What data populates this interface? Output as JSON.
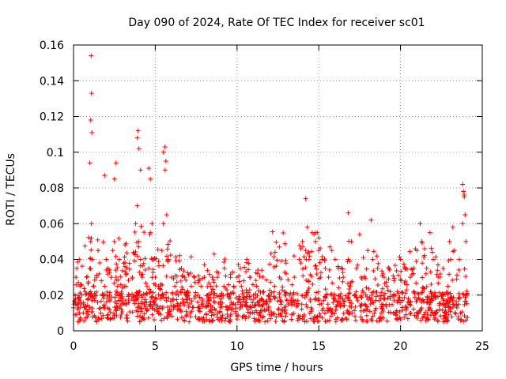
{
  "chart_data": {
    "type": "scatter",
    "title": "Day 090 of 2024, Rate Of TEC Index for receiver sc01",
    "xlabel": "GPS time / hours",
    "ylabel": "ROTI / TECUs",
    "xlim": [
      0,
      25
    ],
    "ylim": [
      0,
      0.16
    ],
    "xticks": [
      0,
      5,
      10,
      15,
      20,
      25
    ],
    "xtick_labels": [
      "0",
      "5",
      "10",
      "15",
      "20",
      "25"
    ],
    "yticks": [
      0,
      0.02,
      0.04,
      0.06,
      0.08,
      0.1,
      0.12,
      0.14,
      0.16
    ],
    "ytick_labels": [
      "0",
      "0.02",
      "0.04",
      "0.06",
      "0.08",
      "0.1",
      "0.12",
      "0.14",
      "0.16"
    ],
    "grid": true,
    "marker": "+",
    "color": "#ff0000",
    "series": [
      {
        "name": "ROTI",
        "x": [
          0.02,
          0.1,
          0.15,
          0.2,
          0.25,
          0.3,
          0.35,
          0.4,
          0.5,
          0.6,
          0.7,
          0.8,
          0.9,
          1.0,
          1.05,
          1.1,
          1.15,
          1.2,
          1.3,
          1.4,
          1.5,
          1.6,
          1.7,
          1.8,
          1.9,
          2.0,
          2.1,
          2.2,
          2.3,
          2.4,
          2.5,
          2.6,
          2.7,
          2.8,
          2.9,
          3.0,
          3.2,
          3.4,
          3.6,
          3.8,
          3.9,
          4.0,
          4.1,
          4.2,
          4.4,
          4.6,
          4.7,
          4.8,
          4.9,
          5.0,
          5.2,
          5.4,
          5.5,
          5.6,
          5.7,
          5.8,
          6.0,
          6.2,
          6.4,
          6.6,
          6.8,
          7.0,
          7.2,
          7.4,
          7.6,
          7.8,
          8.0,
          8.2,
          8.4,
          8.6,
          8.8,
          9.0,
          9.2,
          9.4,
          9.6,
          9.8,
          10.0,
          10.2,
          10.4,
          10.6,
          10.8,
          11.0,
          11.2,
          11.5,
          11.8,
          12.0,
          12.3,
          12.6,
          12.9,
          13.2,
          13.5,
          13.8,
          14.0,
          14.2,
          14.4,
          14.6,
          14.8,
          15.0,
          15.2,
          15.4,
          15.6,
          15.8,
          16.0,
          16.2,
          16.5,
          16.8,
          17.0,
          17.3,
          17.6,
          18.0,
          18.3,
          18.6,
          19.0,
          19.3,
          19.6,
          20.0,
          20.3,
          20.6,
          21.0,
          21.3,
          21.6,
          22.0,
          22.3,
          22.6,
          23.0,
          23.3,
          23.6,
          23.8,
          23.9,
          24.0,
          1.08,
          1.1,
          1.05,
          1.12,
          1.0,
          1.9,
          3.95,
          4.0,
          4.1,
          3.9,
          4.6,
          4.7,
          5.5,
          5.6,
          5.65,
          2.6,
          2.5,
          14.2,
          14.3,
          14.8,
          15.0,
          16.8,
          17.5,
          18.2,
          21.2,
          21.8,
          23.2,
          23.8,
          23.85,
          23.9,
          23.95
        ],
        "y": [
          0.015,
          0.02,
          0.03,
          0.035,
          0.012,
          0.018,
          0.04,
          0.025,
          0.02,
          0.015,
          0.022,
          0.03,
          0.018,
          0.035,
          0.05,
          0.06,
          0.04,
          0.025,
          0.02,
          0.03,
          0.045,
          0.038,
          0.028,
          0.02,
          0.025,
          0.04,
          0.035,
          0.02,
          0.03,
          0.045,
          0.05,
          0.03,
          0.025,
          0.04,
          0.02,
          0.015,
          0.025,
          0.02,
          0.03,
          0.06,
          0.07,
          0.05,
          0.04,
          0.03,
          0.02,
          0.035,
          0.055,
          0.06,
          0.04,
          0.03,
          0.025,
          0.045,
          0.06,
          0.09,
          0.065,
          0.04,
          0.03,
          0.025,
          0.02,
          0.035,
          0.03,
          0.02,
          0.025,
          0.03,
          0.02,
          0.025,
          0.03,
          0.02,
          0.025,
          0.043,
          0.03,
          0.02,
          0.025,
          0.02,
          0.03,
          0.025,
          0.03,
          0.035,
          0.028,
          0.04,
          0.03,
          0.02,
          0.025,
          0.018,
          0.015,
          0.02,
          0.025,
          0.03,
          0.022,
          0.02,
          0.03,
          0.04,
          0.05,
          0.045,
          0.04,
          0.055,
          0.05,
          0.045,
          0.04,
          0.035,
          0.03,
          0.045,
          0.04,
          0.035,
          0.03,
          0.04,
          0.05,
          0.035,
          0.03,
          0.045,
          0.04,
          0.035,
          0.03,
          0.035,
          0.028,
          0.04,
          0.035,
          0.03,
          0.045,
          0.05,
          0.035,
          0.04,
          0.03,
          0.035,
          0.05,
          0.045,
          0.04,
          0.06,
          0.075,
          0.05,
          0.154,
          0.133,
          0.118,
          0.111,
          0.094,
          0.087,
          0.112,
          0.102,
          0.09,
          0.108,
          0.091,
          0.085,
          0.1,
          0.103,
          0.095,
          0.094,
          0.085,
          0.074,
          0.058,
          0.055,
          0.052,
          0.066,
          0.054,
          0.062,
          0.06,
          0.055,
          0.058,
          0.082,
          0.078,
          0.076,
          0.065
        ],
        "baseline_band": [
          0.005,
          0.022
        ]
      }
    ]
  }
}
